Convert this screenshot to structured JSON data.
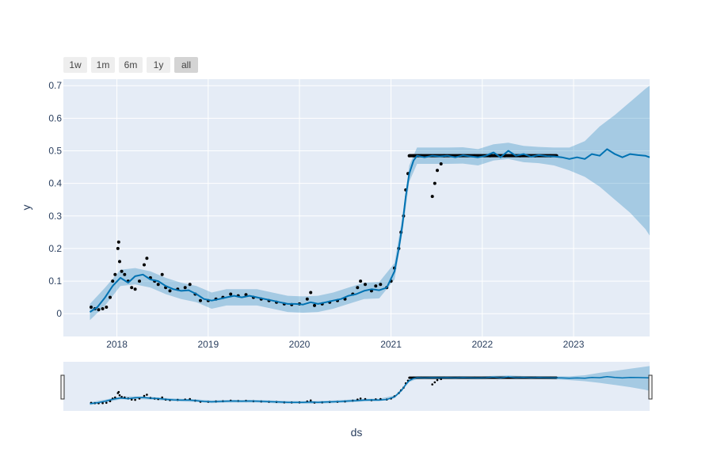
{
  "range_selector": {
    "buttons": [
      "1w",
      "1m",
      "6m",
      "1y",
      "all"
    ],
    "active": "all"
  },
  "colors": {
    "plot_bg": "#e5ecf6",
    "grid": "#ffffff",
    "trend": "#0072b2",
    "band": "#0072b2",
    "band_opacity": 0.2,
    "points": "#000000",
    "button_bg": "#eeeeee",
    "button_active_bg": "#d4d4d4"
  },
  "chart_data": {
    "type": "line",
    "title": "",
    "xlabel": "ds",
    "ylabel": "y",
    "x_ticks": [
      "2018",
      "2019",
      "2020",
      "2021",
      "2022",
      "2023"
    ],
    "y_ticks": [
      "0",
      "0.1",
      "0.2",
      "0.3",
      "0.4",
      "0.5",
      "0.6",
      "0.7"
    ],
    "x_range": [
      "2017-06-01",
      "2023-11-01"
    ],
    "y_range": [
      -0.07,
      0.72
    ],
    "grid": true,
    "has_range_slider": true,
    "series": [
      {
        "kind": "forecast_line",
        "points": [
          [
            "2017-09-15",
            0.005
          ],
          [
            "2017-10-15",
            0.02
          ],
          [
            "2017-11-15",
            0.05
          ],
          [
            "2017-12-15",
            0.085
          ],
          [
            "2018-01-15",
            0.11
          ],
          [
            "2018-02-15",
            0.095
          ],
          [
            "2018-03-15",
            0.115
          ],
          [
            "2018-04-15",
            0.12
          ],
          [
            "2018-05-15",
            0.105
          ],
          [
            "2018-06-15",
            0.1
          ],
          [
            "2018-07-15",
            0.085
          ],
          [
            "2018-08-15",
            0.075
          ],
          [
            "2018-09-15",
            0.07
          ],
          [
            "2018-10-15",
            0.072
          ],
          [
            "2018-11-15",
            0.06
          ],
          [
            "2018-12-15",
            0.045
          ],
          [
            "2019-01-15",
            0.04
          ],
          [
            "2019-02-15",
            0.045
          ],
          [
            "2019-03-15",
            0.05
          ],
          [
            "2019-04-15",
            0.055
          ],
          [
            "2019-05-15",
            0.05
          ],
          [
            "2019-06-15",
            0.055
          ],
          [
            "2019-07-15",
            0.05
          ],
          [
            "2019-08-15",
            0.045
          ],
          [
            "2019-09-15",
            0.04
          ],
          [
            "2019-10-15",
            0.035
          ],
          [
            "2019-11-15",
            0.03
          ],
          [
            "2019-12-15",
            0.03
          ],
          [
            "2020-01-15",
            0.028
          ],
          [
            "2020-02-15",
            0.035
          ],
          [
            "2020-03-15",
            0.03
          ],
          [
            "2020-04-15",
            0.035
          ],
          [
            "2020-05-15",
            0.04
          ],
          [
            "2020-06-15",
            0.045
          ],
          [
            "2020-07-15",
            0.055
          ],
          [
            "2020-08-15",
            0.06
          ],
          [
            "2020-09-15",
            0.07
          ],
          [
            "2020-10-15",
            0.075
          ],
          [
            "2020-11-15",
            0.072
          ],
          [
            "2020-12-15",
            0.08
          ],
          [
            "2021-01-15",
            0.13
          ],
          [
            "2021-02-01",
            0.2
          ],
          [
            "2021-02-15",
            0.27
          ],
          [
            "2021-03-01",
            0.36
          ],
          [
            "2021-03-15",
            0.43
          ],
          [
            "2021-04-01",
            0.47
          ],
          [
            "2021-04-15",
            0.485
          ],
          [
            "2021-05-15",
            0.48
          ],
          [
            "2021-06-15",
            0.485
          ],
          [
            "2021-07-15",
            0.483
          ],
          [
            "2021-08-15",
            0.485
          ],
          [
            "2021-09-15",
            0.48
          ],
          [
            "2021-10-15",
            0.486
          ],
          [
            "2021-11-15",
            0.483
          ],
          [
            "2021-12-15",
            0.48
          ],
          [
            "2022-01-15",
            0.485
          ],
          [
            "2022-02-15",
            0.495
          ],
          [
            "2022-03-15",
            0.48
          ],
          [
            "2022-04-15",
            0.5
          ],
          [
            "2022-05-15",
            0.485
          ],
          [
            "2022-06-15",
            0.49
          ],
          [
            "2022-07-15",
            0.482
          ],
          [
            "2022-08-15",
            0.487
          ],
          [
            "2022-09-15",
            0.484
          ],
          [
            "2022-10-15",
            0.483
          ],
          [
            "2022-11-15",
            0.48
          ],
          [
            "2022-12-15",
            0.475
          ],
          [
            "2023-01-15",
            0.48
          ],
          [
            "2023-02-15",
            0.475
          ],
          [
            "2023-03-15",
            0.49
          ],
          [
            "2023-04-15",
            0.485
          ],
          [
            "2023-05-15",
            0.505
          ],
          [
            "2023-06-15",
            0.49
          ],
          [
            "2023-07-15",
            0.48
          ],
          [
            "2023-08-15",
            0.49
          ],
          [
            "2023-09-15",
            0.487
          ],
          [
            "2023-10-15",
            0.485
          ],
          [
            "2023-11-01",
            0.48
          ]
        ]
      },
      {
        "kind": "uncertainty_band",
        "points": [
          [
            "2017-09-15",
            -0.02,
            0.03
          ],
          [
            "2017-11-15",
            0.025,
            0.08
          ],
          [
            "2018-01-15",
            0.085,
            0.135
          ],
          [
            "2018-03-15",
            0.09,
            0.14
          ],
          [
            "2018-05-15",
            0.08,
            0.13
          ],
          [
            "2018-07-15",
            0.06,
            0.11
          ],
          [
            "2018-09-15",
            0.045,
            0.095
          ],
          [
            "2018-11-15",
            0.035,
            0.085
          ],
          [
            "2019-01-15",
            0.015,
            0.065
          ],
          [
            "2019-03-15",
            0.025,
            0.075
          ],
          [
            "2019-05-15",
            0.025,
            0.075
          ],
          [
            "2019-07-15",
            0.025,
            0.075
          ],
          [
            "2019-09-15",
            0.015,
            0.065
          ],
          [
            "2019-11-15",
            0.005,
            0.055
          ],
          [
            "2020-01-15",
            0.003,
            0.053
          ],
          [
            "2020-03-15",
            0.005,
            0.055
          ],
          [
            "2020-05-15",
            0.015,
            0.065
          ],
          [
            "2020-07-15",
            0.03,
            0.08
          ],
          [
            "2020-09-15",
            0.045,
            0.095
          ],
          [
            "2020-11-15",
            0.047,
            0.097
          ],
          [
            "2021-01-15",
            0.105,
            0.155
          ],
          [
            "2021-02-15",
            0.245,
            0.295
          ],
          [
            "2021-03-15",
            0.405,
            0.455
          ],
          [
            "2021-04-15",
            0.46,
            0.51
          ],
          [
            "2021-06-15",
            0.46,
            0.51
          ],
          [
            "2021-08-15",
            0.46,
            0.51
          ],
          [
            "2021-10-15",
            0.461,
            0.511
          ],
          [
            "2021-12-15",
            0.455,
            0.505
          ],
          [
            "2022-02-15",
            0.47,
            0.52
          ],
          [
            "2022-04-15",
            0.475,
            0.525
          ],
          [
            "2022-06-15",
            0.465,
            0.515
          ],
          [
            "2022-08-15",
            0.462,
            0.512
          ],
          [
            "2022-10-15",
            0.455,
            0.51
          ],
          [
            "2022-12-15",
            0.44,
            0.51
          ],
          [
            "2023-02-15",
            0.42,
            0.53
          ],
          [
            "2023-04-15",
            0.39,
            0.575
          ],
          [
            "2023-06-15",
            0.35,
            0.61
          ],
          [
            "2023-08-15",
            0.31,
            0.65
          ],
          [
            "2023-10-15",
            0.26,
            0.69
          ],
          [
            "2023-11-01",
            0.24,
            0.7
          ]
        ]
      },
      {
        "kind": "observed_points",
        "points": [
          [
            "2017-09-20",
            0.02
          ],
          [
            "2017-10-05",
            0.015
          ],
          [
            "2017-10-20",
            0.012
          ],
          [
            "2017-11-05",
            0.015
          ],
          [
            "2017-11-20",
            0.02
          ],
          [
            "2017-12-05",
            0.05
          ],
          [
            "2017-12-15",
            0.1
          ],
          [
            "2017-12-25",
            0.12
          ],
          [
            "2018-01-05",
            0.2
          ],
          [
            "2018-01-08",
            0.22
          ],
          [
            "2018-01-12",
            0.16
          ],
          [
            "2018-01-20",
            0.13
          ],
          [
            "2018-02-01",
            0.12
          ],
          [
            "2018-02-15",
            0.1
          ],
          [
            "2018-03-01",
            0.08
          ],
          [
            "2018-03-15",
            0.075
          ],
          [
            "2018-04-01",
            0.1
          ],
          [
            "2018-04-20",
            0.15
          ],
          [
            "2018-05-01",
            0.17
          ],
          [
            "2018-05-15",
            0.11
          ],
          [
            "2018-06-01",
            0.1
          ],
          [
            "2018-06-15",
            0.09
          ],
          [
            "2018-07-01",
            0.12
          ],
          [
            "2018-07-15",
            0.08
          ],
          [
            "2018-08-01",
            0.07
          ],
          [
            "2018-09-01",
            0.075
          ],
          [
            "2018-10-01",
            0.08
          ],
          [
            "2018-10-20",
            0.09
          ],
          [
            "2018-11-10",
            0.06
          ],
          [
            "2018-12-01",
            0.04
          ],
          [
            "2019-01-01",
            0.04
          ],
          [
            "2019-02-01",
            0.045
          ],
          [
            "2019-03-01",
            0.05
          ],
          [
            "2019-04-01",
            0.06
          ],
          [
            "2019-05-01",
            0.055
          ],
          [
            "2019-06-01",
            0.058
          ],
          [
            "2019-07-01",
            0.05
          ],
          [
            "2019-08-01",
            0.045
          ],
          [
            "2019-09-01",
            0.04
          ],
          [
            "2019-10-01",
            0.035
          ],
          [
            "2019-11-01",
            0.03
          ],
          [
            "2019-12-01",
            0.028
          ],
          [
            "2020-01-01",
            0.03
          ],
          [
            "2020-02-01",
            0.045
          ],
          [
            "2020-02-15",
            0.065
          ],
          [
            "2020-03-01",
            0.025
          ],
          [
            "2020-04-01",
            0.03
          ],
          [
            "2020-05-01",
            0.035
          ],
          [
            "2020-06-01",
            0.04
          ],
          [
            "2020-07-01",
            0.045
          ],
          [
            "2020-08-01",
            0.06
          ],
          [
            "2020-08-20",
            0.08
          ],
          [
            "2020-09-01",
            0.1
          ],
          [
            "2020-09-20",
            0.09
          ],
          [
            "2020-10-15",
            0.07
          ],
          [
            "2020-11-01",
            0.085
          ],
          [
            "2020-11-20",
            0.09
          ],
          [
            "2020-12-15",
            0.08
          ],
          [
            "2021-01-01",
            0.1
          ],
          [
            "2021-01-15",
            0.14
          ],
          [
            "2021-02-01",
            0.2
          ],
          [
            "2021-02-10",
            0.25
          ],
          [
            "2021-02-20",
            0.3
          ],
          [
            "2021-03-01",
            0.38
          ],
          [
            "2021-03-10",
            0.43
          ],
          [
            "2021-03-15",
            0.485
          ],
          [
            "2021-04-01",
            0.485
          ],
          [
            "2021-05-01",
            0.485
          ],
          [
            "2021-06-15",
            0.36
          ],
          [
            "2021-06-25",
            0.4
          ],
          [
            "2021-07-05",
            0.44
          ],
          [
            "2021-07-20",
            0.46
          ],
          [
            "2021-08-01",
            0.485
          ],
          [
            "2021-10-01",
            0.485
          ],
          [
            "2021-12-01",
            0.485
          ],
          [
            "2022-02-01",
            0.485
          ],
          [
            "2022-04-01",
            0.485
          ],
          [
            "2022-06-01",
            0.485
          ],
          [
            "2022-08-01",
            0.485
          ],
          [
            "2022-10-01",
            0.485
          ],
          [
            "2022-10-25",
            0.485
          ]
        ]
      },
      {
        "kind": "observed_plateau",
        "start": "2021-03-15",
        "end": "2022-10-25",
        "value": 0.485
      }
    ]
  }
}
